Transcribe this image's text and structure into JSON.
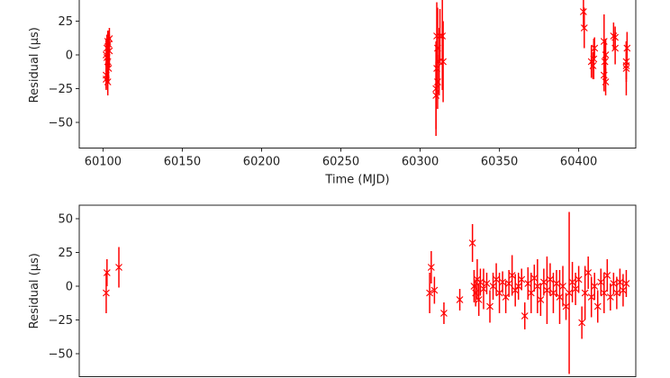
{
  "chart_data": [
    {
      "type": "scatter",
      "xlabel": "Time (MJD)",
      "ylabel": "Residual (µs)",
      "color": "#ff0000",
      "marker": "x",
      "grid": false,
      "xlim": [
        60085,
        60436
      ],
      "ylim": [
        -69,
        50
      ],
      "xticks": [
        60100,
        60150,
        60200,
        60250,
        60300,
        60350,
        60400
      ],
      "yticks": [
        {
          "value": -50,
          "label": "−50"
        },
        {
          "value": -25,
          "label": "−25"
        },
        0,
        25
      ],
      "x": [
        60102,
        60102.5,
        60103,
        60103,
        60103.5,
        60102,
        60103,
        60104,
        60102.5,
        60103.5,
        60104,
        60102,
        60310,
        60310,
        60310.5,
        60310.5,
        60311,
        60311,
        60312,
        60312.5,
        60314,
        60314.5,
        60403,
        60403.5,
        60408,
        60409,
        60409.5,
        60410,
        60416,
        60416,
        60416.5,
        60417,
        60417,
        60422,
        60423,
        60423,
        60430,
        60430,
        60430.5,
        60430
      ],
      "values": [
        0,
        5,
        -5,
        10,
        -10,
        -18,
        -20,
        3,
        -2,
        8,
        12,
        -15,
        -25,
        -30,
        -10,
        14,
        -20,
        5,
        -5,
        14,
        14,
        -5,
        32,
        20,
        -5,
        -8,
        -3,
        5,
        -15,
        10,
        -5,
        -20,
        0,
        14,
        13,
        5,
        -10,
        -5,
        5,
        -8
      ],
      "errors": [
        12,
        10,
        10,
        8,
        9,
        8,
        10,
        12,
        15,
        10,
        8,
        10,
        35,
        25,
        20,
        25,
        20,
        30,
        25,
        20,
        40,
        30,
        12,
        15,
        12,
        10,
        15,
        8,
        12,
        20,
        15,
        10,
        12,
        10,
        8,
        12,
        20,
        15,
        12,
        10
      ]
    },
    {
      "type": "scatter",
      "ylabel": "Residual (µs)",
      "color": "#ff0000",
      "marker": "x",
      "grid": false,
      "xlim": [
        60085,
        60436
      ],
      "ylim": [
        -67,
        60
      ],
      "yticks": [
        {
          "value": -50,
          "label": "−50"
        },
        {
          "value": -25,
          "label": "−25"
        },
        0,
        25,
        50
      ],
      "x": [
        60102,
        60102.5,
        60110,
        60306,
        60307,
        60309,
        60315,
        60325,
        60333,
        60334,
        60335,
        60336,
        60337,
        60338,
        60340,
        60342,
        60344,
        60346,
        60348,
        60350,
        60352,
        60354,
        60356,
        60358,
        60360,
        60362,
        60364,
        60366,
        60368,
        60370,
        60372,
        60374,
        60376,
        60378,
        60380,
        60382,
        60384,
        60386,
        60388,
        60390,
        60392,
        60394,
        60396,
        60398,
        60400,
        60402,
        60404,
        60406,
        60408,
        60410,
        60412,
        60414,
        60416,
        60418,
        60420,
        60422,
        60424,
        60426,
        60428,
        60430
      ],
      "values": [
        -5,
        10,
        14,
        -5,
        14,
        -3,
        -20,
        -10,
        32,
        0,
        -5,
        5,
        -10,
        3,
        -2,
        2,
        -15,
        0,
        5,
        -5,
        3,
        -8,
        2,
        8,
        -3,
        0,
        5,
        -22,
        2,
        -5,
        6,
        0,
        -10,
        3,
        -3,
        5,
        -5,
        2,
        -8,
        0,
        -15,
        -5,
        3,
        -2,
        5,
        -27,
        -5,
        10,
        -8,
        0,
        -15,
        3,
        -5,
        8,
        -8,
        2,
        -5,
        3,
        -3,
        2
      ],
      "errors": [
        15,
        10,
        15,
        15,
        12,
        10,
        8,
        8,
        14,
        12,
        10,
        15,
        12,
        10,
        15,
        8,
        12,
        10,
        12,
        15,
        8,
        12,
        10,
        15,
        12,
        10,
        8,
        10,
        12,
        15,
        10,
        20,
        12,
        10,
        25,
        12,
        15,
        10,
        20,
        15,
        10,
        60,
        15,
        12,
        10,
        12,
        20,
        12,
        15,
        10,
        12,
        10,
        15,
        12,
        10,
        8,
        12,
        10,
        12,
        10
      ]
    }
  ]
}
